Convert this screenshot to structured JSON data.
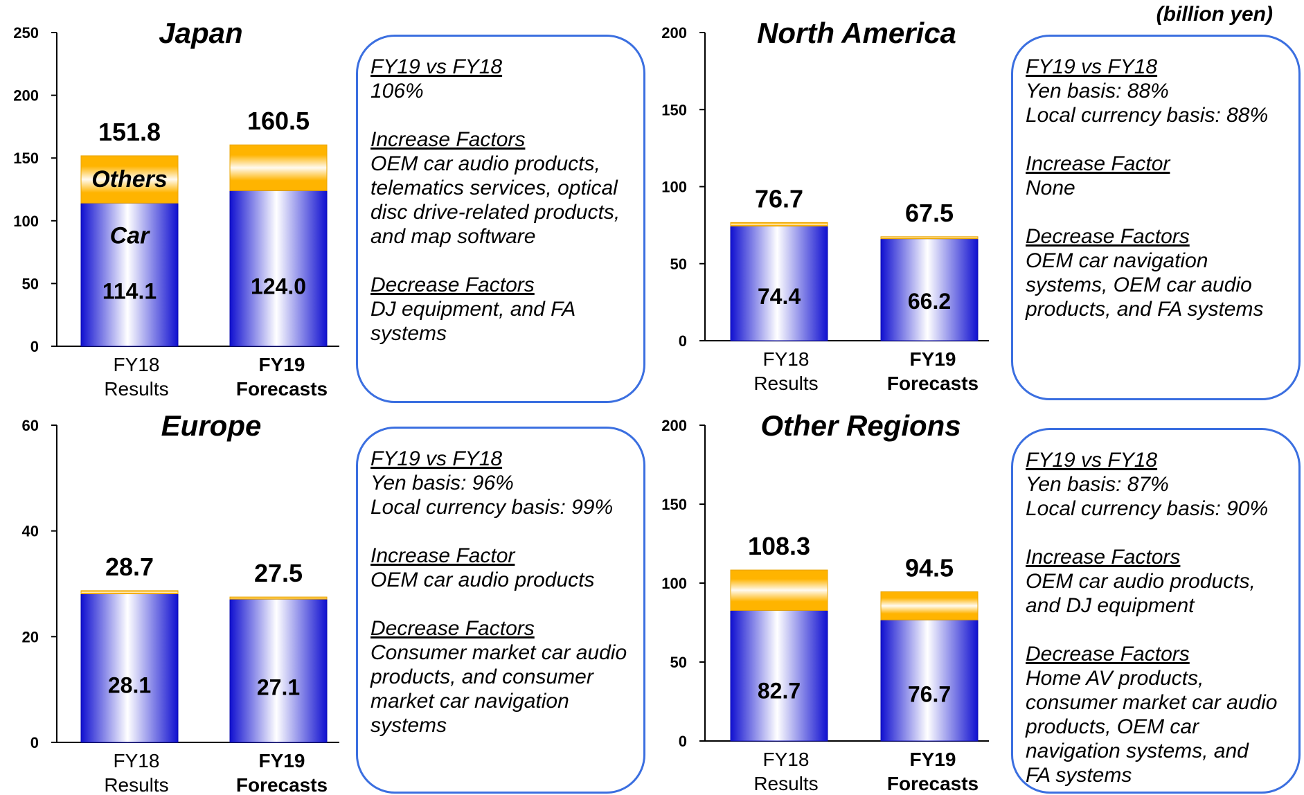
{
  "unit_label": "(billion yen)",
  "x_categories": [
    {
      "line1": "FY18",
      "line2": "Results",
      "bold": false
    },
    {
      "line1": "FY19",
      "line2": "Forecasts",
      "bold": true
    }
  ],
  "colors": {
    "car": "#1a1ad6",
    "car_light": "#ffffff",
    "others": "#ffb400",
    "others_light": "#fff8e6",
    "box_border": "#3b6fe0"
  },
  "chart_data": [
    {
      "type": "bar",
      "title": "Japan",
      "ylim": [
        0,
        250
      ],
      "yticks": [
        0,
        50,
        100,
        150,
        200,
        250
      ],
      "categories": [
        "FY18 Results",
        "FY19 Forecasts"
      ],
      "series": [
        {
          "name": "Car",
          "values": [
            114.1,
            124.0
          ]
        },
        {
          "name": "Others",
          "values": [
            37.7,
            36.5
          ]
        }
      ],
      "totals": [
        "151.8",
        "160.5"
      ],
      "car_labels": [
        "114.1",
        "124.0"
      ],
      "series_labels": {
        "others": "Others",
        "car": "Car"
      }
    },
    {
      "type": "bar",
      "title": "North America",
      "ylim": [
        0,
        200
      ],
      "yticks": [
        0,
        50,
        100,
        150,
        200
      ],
      "categories": [
        "FY18 Results",
        "FY19 Forecasts"
      ],
      "series": [
        {
          "name": "Car",
          "values": [
            74.4,
            66.2
          ]
        },
        {
          "name": "Others",
          "values": [
            2.3,
            1.3
          ]
        }
      ],
      "totals": [
        "76.7",
        "67.5"
      ],
      "car_labels": [
        "74.4",
        "66.2"
      ]
    },
    {
      "type": "bar",
      "title": "Europe",
      "ylim": [
        0,
        60
      ],
      "yticks": [
        0,
        20,
        40,
        60
      ],
      "categories": [
        "FY18 Results",
        "FY19 Forecasts"
      ],
      "series": [
        {
          "name": "Car",
          "values": [
            28.1,
            27.1
          ]
        },
        {
          "name": "Others",
          "values": [
            0.6,
            0.4
          ]
        }
      ],
      "totals": [
        "28.7",
        "27.5"
      ],
      "car_labels": [
        "28.1",
        "27.1"
      ]
    },
    {
      "type": "bar",
      "title": "Other Regions",
      "ylim": [
        0,
        200
      ],
      "yticks": [
        0,
        50,
        100,
        150,
        200
      ],
      "categories": [
        "FY18 Results",
        "FY19 Forecasts"
      ],
      "series": [
        {
          "name": "Car",
          "values": [
            82.7,
            76.7
          ]
        },
        {
          "name": "Others",
          "values": [
            25.6,
            17.8
          ]
        }
      ],
      "totals": [
        "108.3",
        "94.5"
      ],
      "car_labels": [
        "82.7",
        "76.7"
      ]
    }
  ],
  "boxes": [
    {
      "sections": [
        {
          "heading": "FY19 vs FY18",
          "lines": [
            "106%"
          ]
        },
        {
          "heading": "Increase Factors",
          "lines": [
            "OEM car audio products,",
            "telematics services, optical",
            "disc drive-related products,",
            "and map software"
          ]
        },
        {
          "heading": "Decrease Factors",
          "lines": [
            "DJ equipment, and FA",
            "systems"
          ]
        }
      ]
    },
    {
      "sections": [
        {
          "heading": "FY19 vs FY18",
          "lines": [
            "Yen basis: 88%",
            "Local currency basis: 88%"
          ]
        },
        {
          "heading": "Increase Factor",
          "lines": [
            "None"
          ]
        },
        {
          "heading": "Decrease Factors",
          "lines": [
            "OEM car navigation",
            "systems, OEM car audio",
            "products, and FA systems"
          ]
        }
      ]
    },
    {
      "sections": [
        {
          "heading": "FY19 vs FY18",
          "lines": [
            "Yen basis: 96%",
            "Local currency basis: 99%"
          ]
        },
        {
          "heading": "Increase Factor",
          "lines": [
            "OEM car audio products"
          ]
        },
        {
          "heading": "Decrease Factors",
          "lines": [
            "Consumer market car audio",
            "products, and consumer",
            "market car navigation",
            "systems"
          ]
        }
      ]
    },
    {
      "sections": [
        {
          "heading": "FY19 vs FY18",
          "lines": [
            "Yen basis: 87%",
            "Local currency basis: 90%"
          ]
        },
        {
          "heading": "Increase Factors",
          "lines": [
            "OEM car audio products,",
            "and DJ equipment"
          ]
        },
        {
          "heading": "Decrease Factors",
          "lines": [
            "Home AV products,",
            "consumer market car audio",
            "products, OEM car",
            "navigation systems, and",
            "FA systems"
          ]
        }
      ]
    }
  ]
}
